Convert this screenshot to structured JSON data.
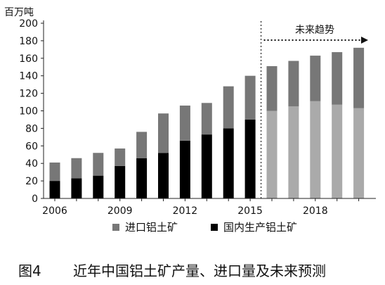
{
  "chart_data": {
    "type": "bar",
    "stacked": true,
    "ylabel": "百万吨",
    "ylim": [
      0,
      200
    ],
    "yticks": [
      0,
      20,
      40,
      60,
      80,
      100,
      120,
      140,
      160,
      180,
      200
    ],
    "categories": [
      "2006",
      "2007",
      "2008",
      "2009",
      "2010",
      "2011",
      "2012",
      "2013",
      "2014",
      "2015",
      "2016",
      "2017",
      "2018",
      "2019",
      "2020"
    ],
    "xtick_labels": [
      "2006",
      "",
      "",
      "2009",
      "",
      "",
      "2012",
      "",
      "",
      "2015",
      "",
      "",
      "2018",
      "",
      ""
    ],
    "series": [
      {
        "name": "国内生产铝土矿",
        "color": "#000000",
        "values": [
          20,
          23,
          26,
          37,
          46,
          52,
          66,
          73,
          80,
          90,
          100,
          105,
          111,
          107,
          103
        ]
      },
      {
        "name": "进口铝土矿",
        "color": "#777777",
        "values": [
          21,
          23,
          26,
          20,
          30,
          45,
          40,
          36,
          48,
          50,
          51,
          52,
          52,
          60,
          69
        ]
      }
    ],
    "forecast_start": "2016",
    "forecast_colors": {
      "domestic": "#aaaaaa",
      "import": "#777777"
    },
    "annotation": "未来趋势",
    "legend": {
      "position": "bottom",
      "items": [
        {
          "label": "进口铝土矿",
          "color": "#777777"
        },
        {
          "label": "国内生产铝土矿",
          "color": "#000000"
        }
      ]
    },
    "grid": false
  },
  "caption": {
    "figure_number": "图4",
    "title": "近年中国铝土矿产量、进口量及未来预测"
  }
}
